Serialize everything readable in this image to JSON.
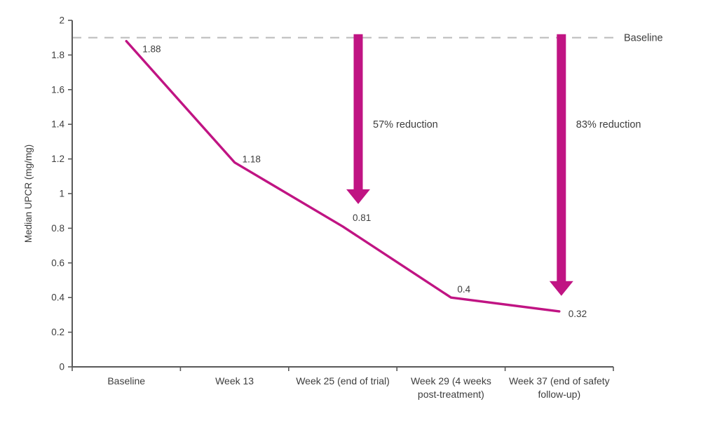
{
  "chart_data": {
    "type": "line",
    "title": "",
    "xlabel": "",
    "ylabel": "Median UPCR (mg/mg)",
    "ylim": [
      0,
      2
    ],
    "ytick_step": 0.2,
    "ytick_labels": [
      "0",
      "0.2",
      "0.4",
      "0.6",
      "0.8",
      "1",
      "1.2",
      "1.4",
      "1.6",
      "1.8",
      "2"
    ],
    "categories": [
      "Baseline",
      "Week 13",
      "Week 25 (end of trial)",
      "Week 29 (4 weeks post-treatment)",
      "Week 37 (end of safety follow-up)"
    ],
    "category_lines": [
      [
        "Baseline"
      ],
      [
        "Week 13"
      ],
      [
        "Week 25 (end of trial)"
      ],
      [
        "Week 29 (4 weeks",
        "post-treatment)"
      ],
      [
        "Week 37 (end of safety",
        "follow-up)"
      ]
    ],
    "series": [
      {
        "name": "Median UPCR",
        "values": [
          1.88,
          1.18,
          0.81,
          0.4,
          0.32
        ],
        "point_labels": [
          "1.88",
          "1.18",
          "0.81",
          "0.4",
          "0.32"
        ],
        "color": "#c01483"
      }
    ],
    "reference_line": {
      "label": "Baseline",
      "value": 1.9,
      "represents_value": 1.88,
      "style": "dashed",
      "color": "#bdbdbd"
    },
    "annotations": [
      {
        "type": "down-arrow",
        "label": "57% reduction",
        "category_index": 2,
        "from_value": 1.92,
        "to_value": 0.94,
        "color": "#c01483"
      },
      {
        "type": "down-arrow",
        "label": "83% reduction",
        "category_index": 4,
        "from_value": 1.92,
        "to_value": 0.41,
        "color": "#c01483"
      }
    ],
    "grid": false,
    "axis_color": "#595959",
    "text_color": "#3d3d3d",
    "background_color": "#ffffff"
  }
}
